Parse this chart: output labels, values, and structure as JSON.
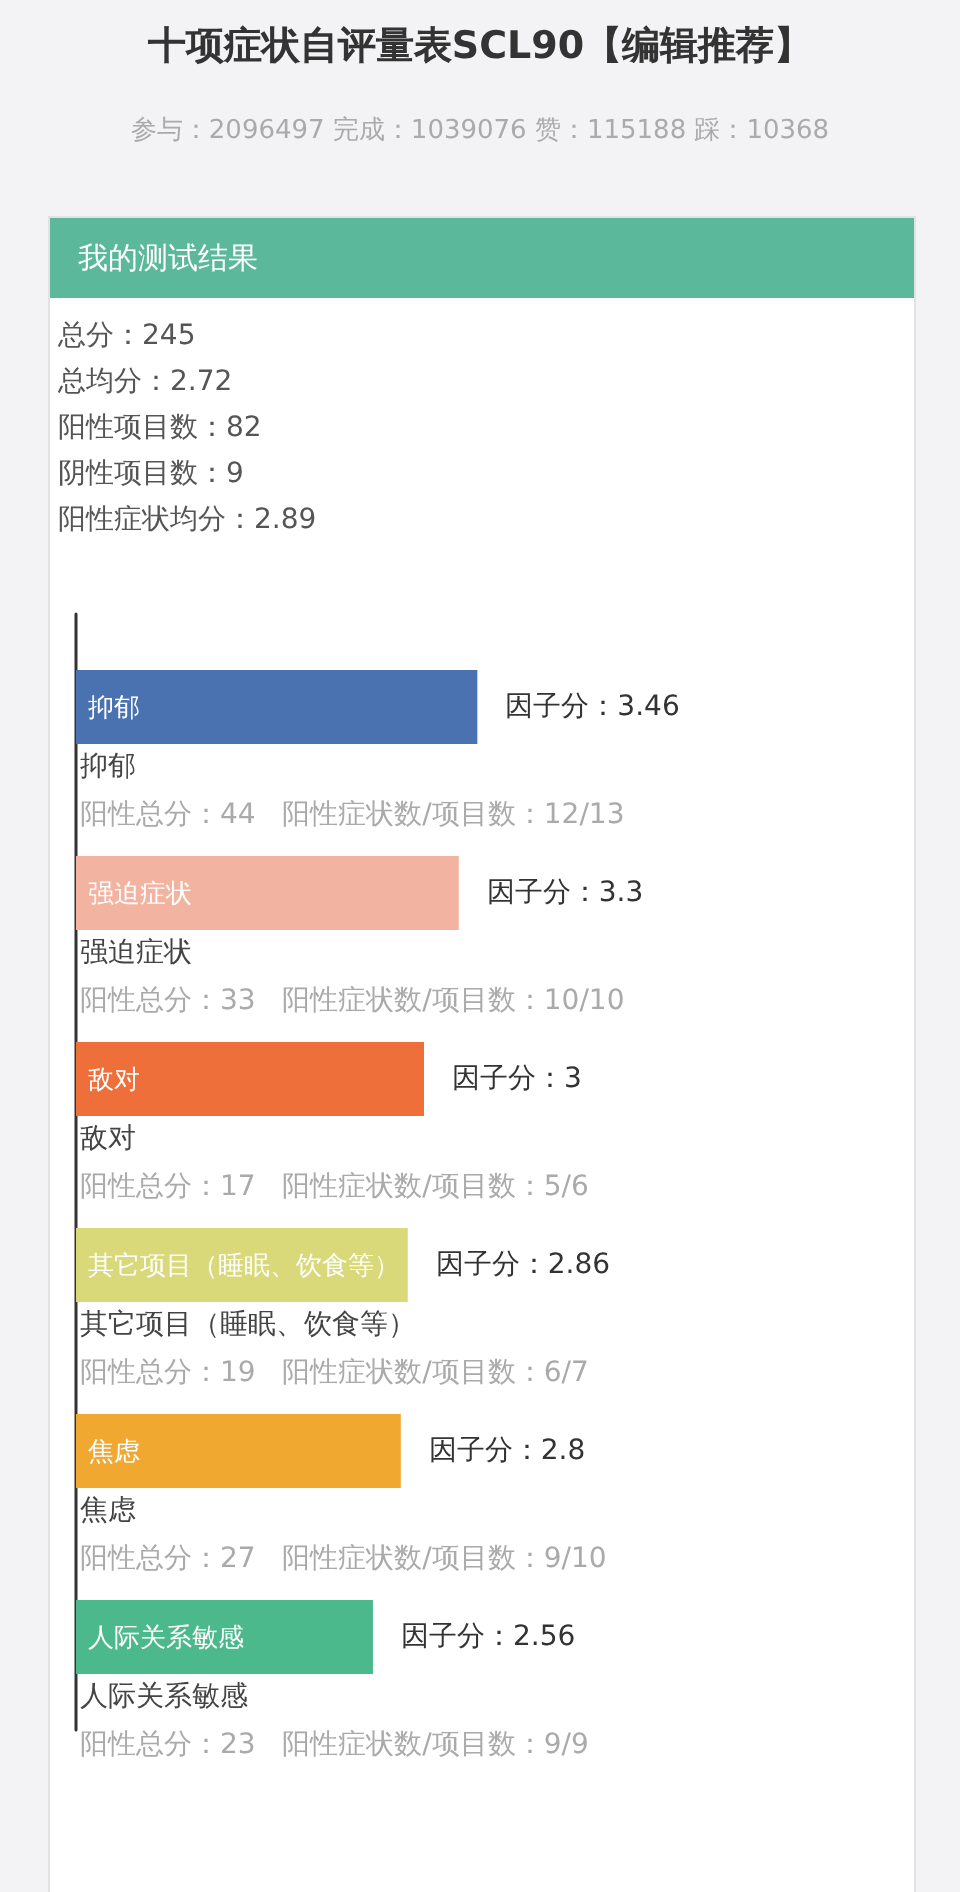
{
  "chart_data": {
    "type": "bar",
    "orientation": "horizontal",
    "title": "十项症状自评量表SCL90【编辑推荐】",
    "subtitle": "参与：2096497 完成：1039076 赞：115188 踩：10368",
    "categories": [
      "抑郁",
      "强迫症状",
      "敌对",
      "其它项目（睡眠、饮食等）",
      "焦虑",
      "人际关系敏感"
    ],
    "values": [
      3.46,
      3.3,
      3,
      2.86,
      2.8,
      2.56
    ],
    "colors": [
      "#4a72b0",
      "#f2b4a0",
      "#ee6f3a",
      "#d9d97a",
      "#f0a830",
      "#4cb98c"
    ],
    "value_labels": [
      "因子分：3.46",
      "因子分：3.3",
      "因子分：3",
      "因子分：2.86",
      "因子分：2.8",
      "因子分：2.56"
    ],
    "annotations": [
      "我的测试结果",
      "总分：245",
      "总均分：2.72",
      "阳性项目数：82",
      "阴性项目数：9",
      "阳性症状均分：2.89",
      "抑郁",
      "阳性总分：44   阳性症状数/项目数：12/13",
      "强迫症状",
      "阳性总分：33   阳性症状数/项目数：10/10",
      "敌对",
      "阳性总分：17   阳性症状数/项目数：5/6",
      "其它项目（睡眠、饮食等）",
      "阳性总分：19   阳性症状数/项目数：6/7",
      "焦虑",
      "阳性总分：27   阳性症状数/项目数：9/10",
      "人际关系敏感",
      "阳性总分：23   阳性症状数/项目数：9/9"
    ]
  }
}
